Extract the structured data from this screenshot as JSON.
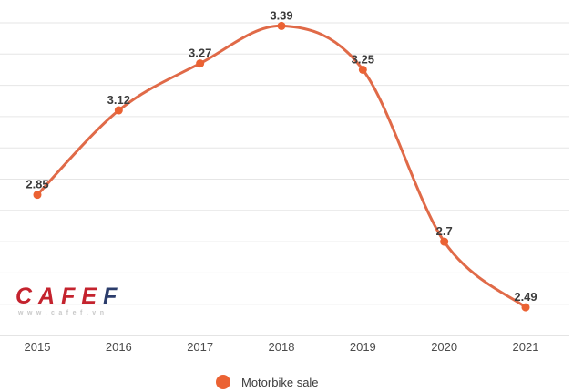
{
  "chart_data": {
    "type": "line",
    "categories": [
      "2015",
      "2016",
      "2017",
      "2018",
      "2019",
      "2020",
      "2021"
    ],
    "series": [
      {
        "name": "Motorbike sale",
        "values": [
          2.85,
          3.12,
          3.27,
          3.39,
          3.25,
          2.7,
          2.49
        ]
      }
    ],
    "point_labels": [
      "2.85",
      "3.12",
      "3.27",
      "3.39",
      "3.25",
      "2.7",
      "2.49"
    ],
    "ylim": [
      2.4,
      3.4
    ],
    "ytick_step": 0.1,
    "grid": true,
    "y_axis_labels_visible": false,
    "legend_position": "bottom",
    "curve": "smooth",
    "colors": {
      "line": "#e06a48",
      "point": "#eb6233",
      "point_label": "#3c3c3c",
      "x_axis_label": "#4b4b4b",
      "gridline": "#e6e6e6",
      "baseline": "#c9c9c9"
    }
  },
  "legend": {
    "label": "Motorbike sale",
    "marker_color": "#eb6233"
  },
  "watermark": {
    "brand_main": "CAFE",
    "brand_last": "F",
    "url": "www.cafef.vn",
    "brand_main_color": "#c4232e",
    "brand_last_color": "#2b3c6b",
    "url_color": "#c9c9c9"
  }
}
